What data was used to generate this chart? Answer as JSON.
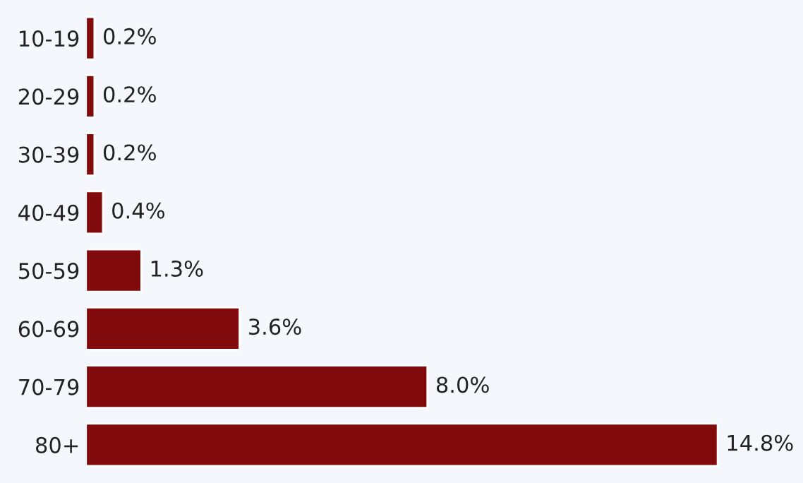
{
  "chart_data": {
    "type": "bar",
    "orientation": "horizontal",
    "categories": [
      "10-19",
      "20-29",
      "30-39",
      "40-49",
      "50-59",
      "60-69",
      "70-79",
      "80+"
    ],
    "values": [
      0.2,
      0.2,
      0.2,
      0.4,
      1.3,
      3.6,
      8.0,
      14.8
    ],
    "value_labels": [
      "0.2%",
      "0.2%",
      "0.2%",
      "0.4%",
      "1.3%",
      "3.6%",
      "8.0%",
      "14.8%"
    ],
    "color": "#800a0c",
    "tick_labels": "y",
    "grid": false,
    "legend": false
  }
}
